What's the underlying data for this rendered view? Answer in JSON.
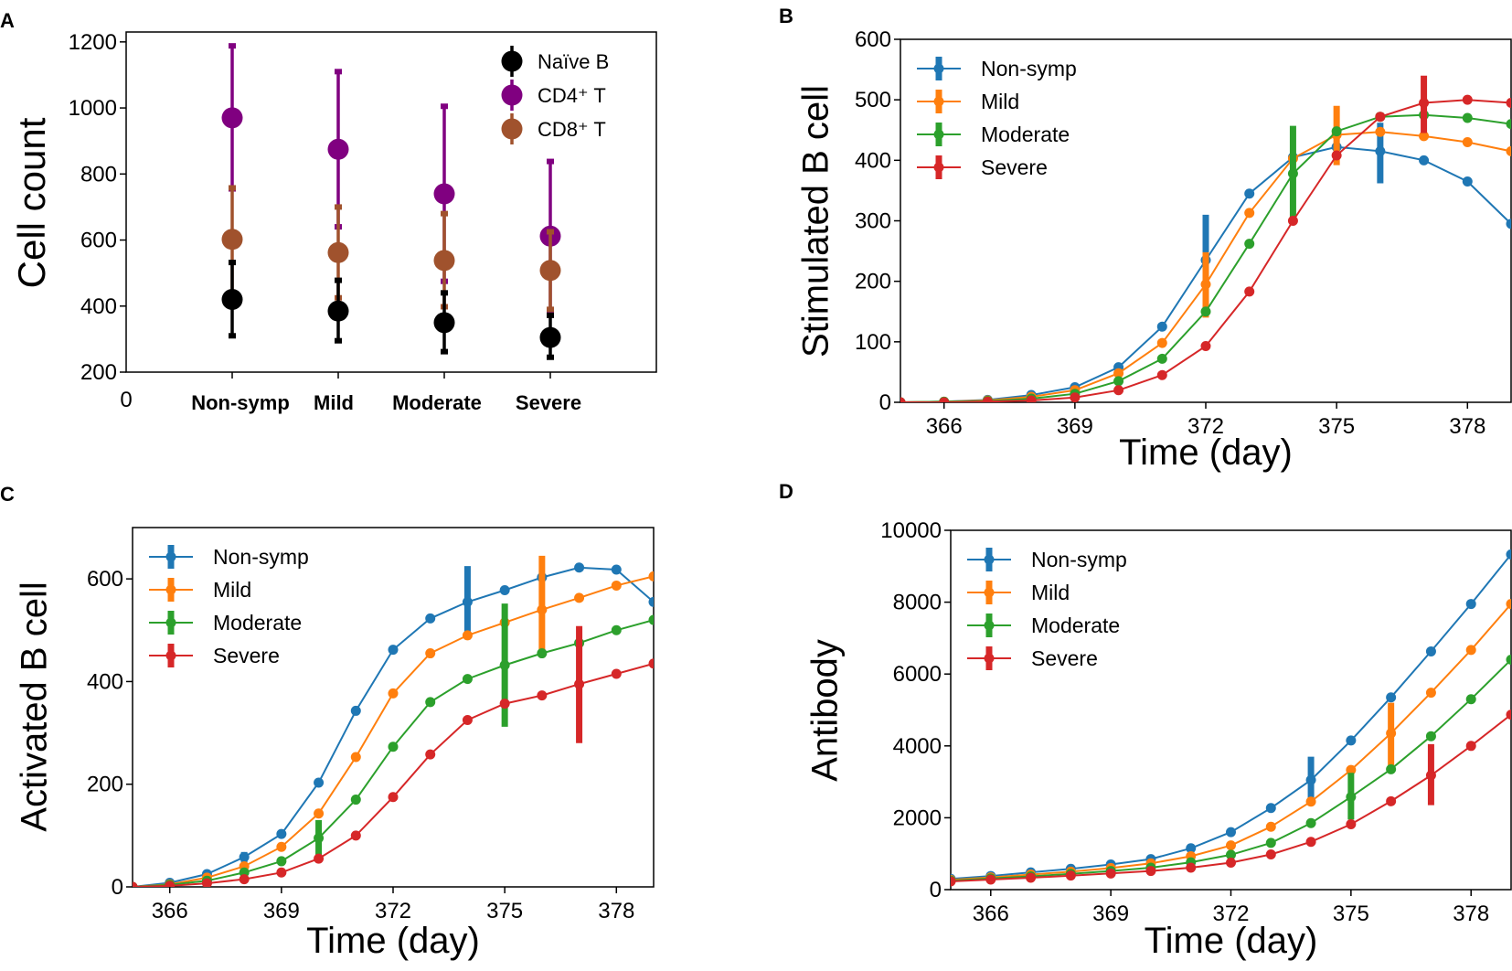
{
  "figure": {
    "colors": {
      "nonsymp": "#1f77b4",
      "mild": "#ff7f0e",
      "moderate": "#2ca02c",
      "severe": "#d62728",
      "naive": "#000000",
      "cd4": "#800080",
      "cd8": "#a0522d"
    }
  },
  "chart_data": [
    {
      "panel": "A",
      "type": "scatter",
      "title": "",
      "xlabel": "",
      "ylabel": "Cell count",
      "origin_label": "0",
      "categories": [
        "Non-symp",
        "Mild",
        "Moderate",
        "Severe"
      ],
      "x": [
        1,
        2,
        3,
        4
      ],
      "xlim": [
        0,
        5
      ],
      "ylim": [
        200,
        1230
      ],
      "yticks": [
        200,
        400,
        600,
        800,
        1000,
        1200
      ],
      "ytick_labels": [
        "200",
        "400",
        "600",
        "800",
        "1000",
        "1200"
      ],
      "legend_position": "top-right",
      "series": [
        {
          "name": "Naïve B",
          "legend_label": "Naïve B",
          "color": "#000000",
          "values": [
            420,
            385,
            350,
            305
          ],
          "err_low": [
            310,
            295,
            262,
            245
          ],
          "err_high": [
            532,
            478,
            440,
            372
          ]
        },
        {
          "name": "CD4⁺ T",
          "legend_label": "CD4⁺ T",
          "color": "#800080",
          "values": [
            970,
            875,
            740,
            612
          ],
          "err_low": [
            755,
            640,
            475,
            385
          ],
          "err_high": [
            1188,
            1110,
            1005,
            838
          ]
        },
        {
          "name": "CD8⁺ T",
          "legend_label": "CD8⁺ T",
          "color": "#a0522d",
          "values": [
            602,
            562,
            538,
            508
          ],
          "err_low": [
            442,
            425,
            398,
            390
          ],
          "err_high": [
            758,
            700,
            680,
            625
          ]
        }
      ]
    },
    {
      "panel": "B",
      "type": "line",
      "title": "",
      "xlabel": "Time (day)",
      "ylabel": "Stimulated B cell",
      "x": [
        365,
        366,
        367,
        368,
        369,
        370,
        371,
        372,
        373,
        374,
        375,
        376,
        377,
        378,
        379
      ],
      "xlim": [
        365,
        379
      ],
      "ylim": [
        0,
        600
      ],
      "xticks": [
        366,
        369,
        372,
        375,
        378
      ],
      "xtick_labels": [
        "366",
        "369",
        "372",
        "375",
        "378"
      ],
      "yticks": [
        0,
        100,
        200,
        300,
        400,
        500,
        600
      ],
      "ytick_labels": [
        "0",
        "100",
        "200",
        "300",
        "400",
        "500",
        "600"
      ],
      "legend_position": "top-left",
      "series": [
        {
          "name": "Non-symp",
          "color": "#1f77b4",
          "values": [
            0,
            1,
            4,
            12,
            25,
            58,
            125,
            235,
            345,
            405,
            422,
            415,
            400,
            365,
            295
          ],
          "err_x": [
            372,
            376
          ],
          "err_low": [
            160,
            362
          ],
          "err_high": [
            310,
            462
          ]
        },
        {
          "name": "Mild",
          "color": "#ff7f0e",
          "values": [
            0,
            1,
            3,
            9,
            20,
            48,
            98,
            195,
            313,
            403,
            442,
            447,
            440,
            430,
            415
          ],
          "err_x": [
            372,
            375
          ],
          "err_low": [
            140,
            392
          ],
          "err_high": [
            248,
            490
          ]
        },
        {
          "name": "Moderate",
          "color": "#2ca02c",
          "values": [
            0,
            1,
            2,
            6,
            14,
            35,
            72,
            150,
            262,
            378,
            448,
            472,
            475,
            470,
            460
          ],
          "err_x": [
            374
          ],
          "err_low": [
            305
          ],
          "err_high": [
            457
          ]
        },
        {
          "name": "Severe",
          "color": "#d62728",
          "values": [
            0,
            0,
            1,
            3,
            8,
            20,
            45,
            93,
            183,
            300,
            408,
            472,
            495,
            500,
            495
          ],
          "err_x": [
            377
          ],
          "err_low": [
            445
          ],
          "err_high": [
            540
          ]
        }
      ]
    },
    {
      "panel": "C",
      "type": "line",
      "title": "",
      "xlabel": "Time (day)",
      "ylabel": "Activated B cell",
      "x": [
        365,
        366,
        367,
        368,
        369,
        370,
        371,
        372,
        373,
        374,
        375,
        376,
        377,
        378,
        379
      ],
      "xlim": [
        365,
        379
      ],
      "ylim": [
        0,
        700
      ],
      "xticks": [
        366,
        369,
        372,
        375,
        378
      ],
      "xtick_labels": [
        "366",
        "369",
        "372",
        "375",
        "378"
      ],
      "yticks": [
        0,
        200,
        400,
        600
      ],
      "ytick_labels": [
        "0",
        "200",
        "400",
        "600"
      ],
      "legend_position": "top-left",
      "series": [
        {
          "name": "Non-symp",
          "color": "#1f77b4",
          "values": [
            0,
            8,
            25,
            58,
            103,
            203,
            343,
            462,
            523,
            555,
            578,
            603,
            622,
            618,
            555
          ],
          "err_x": [
            368,
            374
          ],
          "err_low": [
            48,
            482
          ],
          "err_high": [
            68,
            625
          ]
        },
        {
          "name": "Mild",
          "color": "#ff7f0e",
          "values": [
            0,
            5,
            18,
            40,
            78,
            143,
            253,
            377,
            455,
            490,
            515,
            540,
            563,
            587,
            605
          ],
          "err_x": [
            376
          ],
          "err_low": [
            450
          ],
          "err_high": [
            645
          ]
        },
        {
          "name": "Moderate",
          "color": "#2ca02c",
          "values": [
            0,
            4,
            12,
            28,
            50,
            95,
            170,
            273,
            360,
            405,
            432,
            455,
            475,
            500,
            520
          ],
          "err_x": [
            370,
            375
          ],
          "err_low": [
            60,
            312
          ],
          "err_high": [
            130,
            552
          ]
        },
        {
          "name": "Severe",
          "color": "#d62728",
          "values": [
            0,
            2,
            7,
            15,
            28,
            55,
            100,
            175,
            258,
            325,
            357,
            373,
            395,
            415,
            435
          ],
          "err_x": [
            377
          ],
          "err_low": [
            280
          ],
          "err_high": [
            508
          ]
        }
      ]
    },
    {
      "panel": "D",
      "type": "line",
      "title": "",
      "xlabel": "Time (day)",
      "ylabel": "Antibody",
      "x": [
        365,
        366,
        367,
        368,
        369,
        370,
        371,
        372,
        373,
        374,
        375,
        376,
        377,
        378,
        379
      ],
      "xlim": [
        365,
        379
      ],
      "ylim": [
        0,
        10000
      ],
      "xticks": [
        366,
        369,
        372,
        375,
        378
      ],
      "xtick_labels": [
        "366",
        "369",
        "372",
        "375",
        "378"
      ],
      "yticks": [
        0,
        2000,
        4000,
        6000,
        8000,
        10000
      ],
      "ytick_labels": [
        "0",
        "2000",
        "4000",
        "6000",
        "8000",
        "10000"
      ],
      "legend_position": "top-left",
      "series": [
        {
          "name": "Non-symp",
          "color": "#1f77b4",
          "values": [
            300,
            380,
            480,
            580,
            700,
            850,
            1150,
            1600,
            2270,
            3050,
            4150,
            5350,
            6630,
            7950,
            9330
          ],
          "err_x": [
            374
          ],
          "err_low": [
            2450
          ],
          "err_high": [
            3700
          ]
        },
        {
          "name": "Mild",
          "color": "#ff7f0e",
          "values": [
            270,
            340,
            420,
            500,
            600,
            730,
            930,
            1230,
            1750,
            2450,
            3330,
            4350,
            5480,
            6670,
            7950
          ],
          "err_x": [
            376
          ],
          "err_low": [
            3450
          ],
          "err_high": [
            5200
          ]
        },
        {
          "name": "Moderate",
          "color": "#2ca02c",
          "values": [
            250,
            310,
            370,
            440,
            520,
            610,
            760,
            970,
            1300,
            1850,
            2580,
            3350,
            4270,
            5300,
            6400
          ],
          "err_x": [
            375
          ],
          "err_low": [
            1950
          ],
          "err_high": [
            3250
          ]
        },
        {
          "name": "Severe",
          "color": "#d62728",
          "values": [
            230,
            280,
            330,
            390,
            450,
            520,
            610,
            750,
            980,
            1330,
            1820,
            2460,
            3180,
            4000,
            4870
          ],
          "err_x": [
            377
          ],
          "err_low": [
            2350
          ],
          "err_high": [
            4050
          ]
        }
      ]
    }
  ]
}
